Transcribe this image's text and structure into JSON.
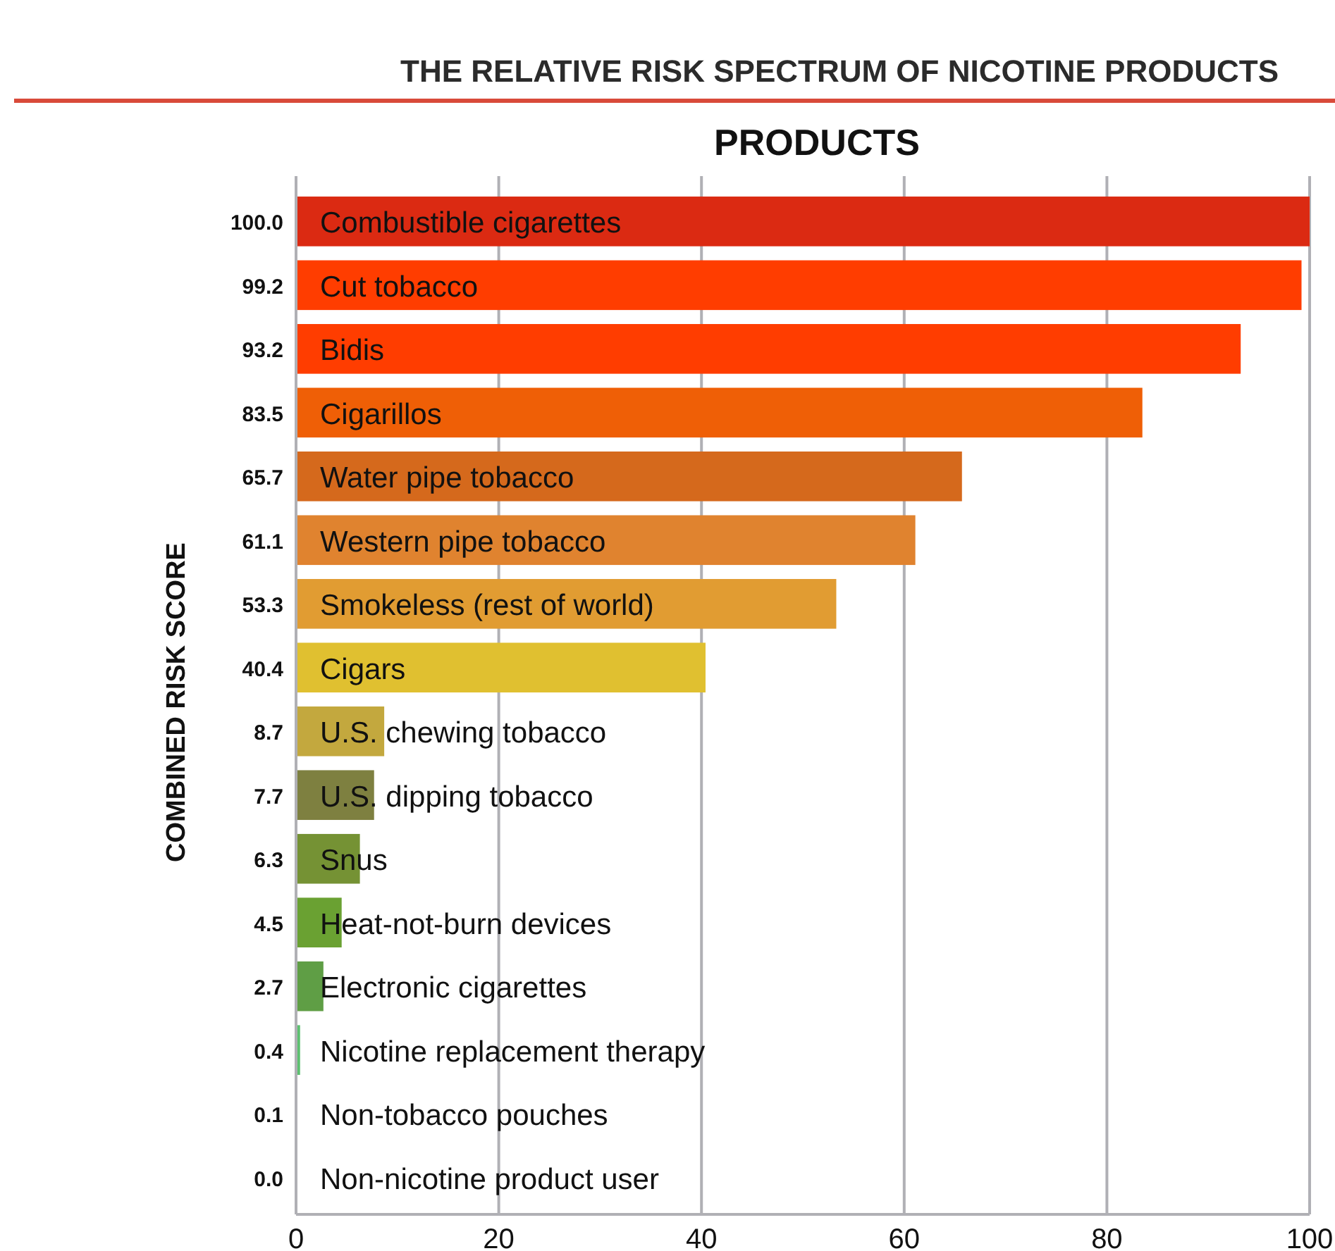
{
  "chart_data": {
    "type": "bar",
    "orientation": "horizontal",
    "title": "THE RELATIVE RISK SPECTRUM OF NICOTINE PRODUCTS",
    "xlabel": "PRODUCTS",
    "ylabel": "COMBINED RISK SCORE",
    "categories": [
      "Combustible cigarettes",
      "Cut tobacco",
      "Bidis",
      "Cigarillos",
      "Water pipe tobacco",
      "Western pipe tobacco",
      "Smokeless (rest of world)",
      "Cigars",
      "U.S. chewing tobacco",
      "U.S. dipping tobacco",
      "Snus",
      "Heat-not-burn devices",
      "Electronic cigarettes",
      "Nicotine replacement therapy",
      "Non-tobacco pouches",
      "Non-nicotine product user"
    ],
    "values": [
      100.0,
      99.2,
      93.2,
      83.5,
      65.7,
      61.1,
      53.3,
      40.4,
      8.7,
      7.7,
      6.3,
      4.5,
      2.7,
      0.4,
      0.1,
      0.0
    ],
    "value_labels": [
      "100.0",
      "99.2",
      "93.2",
      "83.5",
      "65.7",
      "61.1",
      "53.3",
      "40.4",
      "8.7",
      "7.7",
      "6.3",
      "4.5",
      "2.7",
      "0.4",
      "0.1",
      "0.0"
    ],
    "colors": [
      "#db2a12",
      "#ff3d00",
      "#ff3d00",
      "#ef5f06",
      "#d5691c",
      "#e0832f",
      "#e19c32",
      "#e0c030",
      "#c3a83e",
      "#7e8040",
      "#759234",
      "#6aa132",
      "#5f9e45",
      "#5cc070",
      "#5cc070",
      "#5cc070"
    ],
    "xlim": [
      0,
      100
    ],
    "xticks": [
      0,
      20,
      40,
      60,
      80,
      100
    ],
    "grid": "x"
  }
}
